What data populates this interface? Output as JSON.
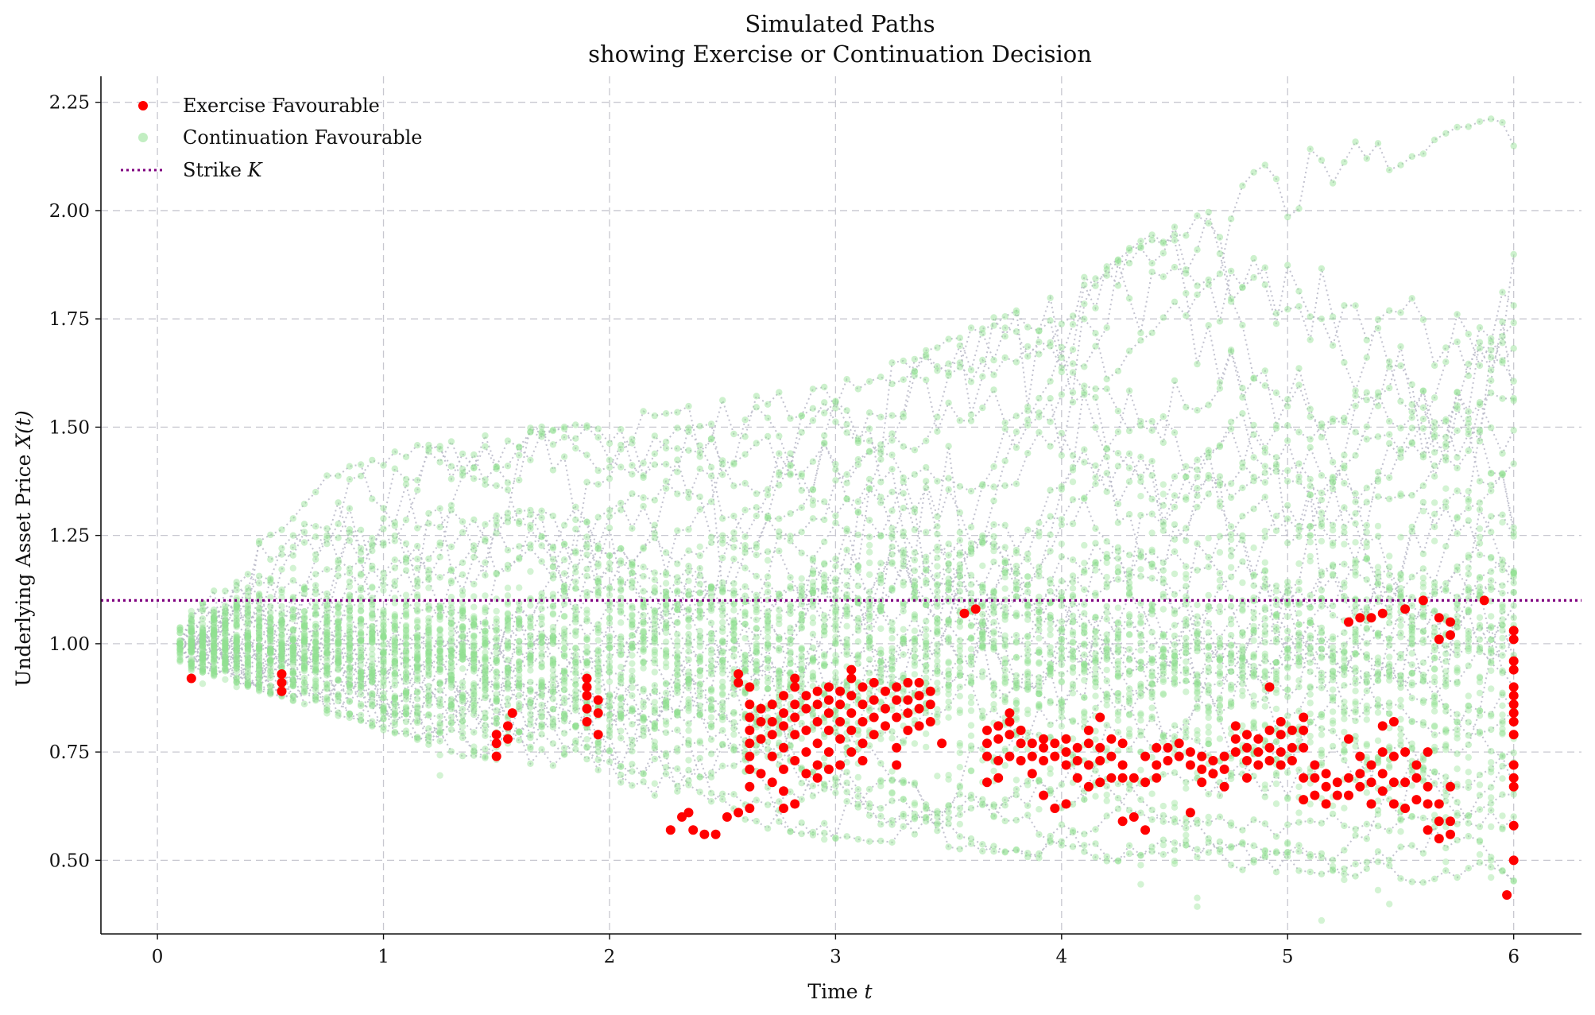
{
  "chart_data": {
    "type": "scatter",
    "title": "Simulated Paths",
    "subtitle": "showing Exercise or Continuation Decision",
    "xlabel": "Time",
    "xlabel_var": "t",
    "ylabel": "Underlying Asset Price",
    "ylabel_var": "X(t)",
    "xlim": [
      -0.25,
      6.3
    ],
    "ylim": [
      0.33,
      2.31
    ],
    "xticks": [
      0,
      1,
      2,
      3,
      4,
      5,
      6
    ],
    "xtick_labels": [
      "0",
      "1",
      "2",
      "3",
      "4",
      "5",
      "6"
    ],
    "yticks": [
      0.5,
      0.75,
      1.0,
      1.25,
      1.5,
      1.75,
      2.0,
      2.25
    ],
    "ytick_labels": [
      "0.50",
      "0.75",
      "1.00",
      "1.25",
      "1.50",
      "1.75",
      "2.00",
      "2.25"
    ],
    "grid": true,
    "legend_position": "top-left",
    "strike": 1.1,
    "strike_label": "Strike",
    "strike_var": "K",
    "colors": {
      "exercise": "#ff0000",
      "continuation": "#90e090",
      "strike": "#800080",
      "path_line": "#b8b8c8",
      "grid": "#c8c8d0"
    },
    "series": [
      {
        "name": "Exercise Favourable",
        "marker": "dot",
        "points": [
          [
            0.15,
            0.92
          ],
          [
            0.55,
            0.89
          ],
          [
            0.55,
            0.91
          ],
          [
            0.55,
            0.93
          ],
          [
            1.5,
            0.74
          ],
          [
            1.5,
            0.77
          ],
          [
            1.5,
            0.79
          ],
          [
            1.55,
            0.78
          ],
          [
            1.55,
            0.81
          ],
          [
            1.57,
            0.84
          ],
          [
            1.9,
            0.82
          ],
          [
            1.9,
            0.85
          ],
          [
            1.9,
            0.88
          ],
          [
            1.9,
            0.9
          ],
          [
            1.9,
            0.92
          ],
          [
            1.95,
            0.79
          ],
          [
            1.95,
            0.84
          ],
          [
            1.95,
            0.87
          ],
          [
            2.27,
            0.57
          ],
          [
            2.32,
            0.6
          ],
          [
            2.35,
            0.61
          ],
          [
            2.37,
            0.57
          ],
          [
            2.42,
            0.56
          ],
          [
            2.47,
            0.56
          ],
          [
            2.52,
            0.6
          ],
          [
            2.57,
            0.61
          ],
          [
            2.62,
            0.62
          ],
          [
            2.57,
            0.91
          ],
          [
            2.57,
            0.93
          ],
          [
            2.62,
            0.67
          ],
          [
            2.62,
            0.71
          ],
          [
            2.62,
            0.74
          ],
          [
            2.62,
            0.77
          ],
          [
            2.62,
            0.8
          ],
          [
            2.62,
            0.83
          ],
          [
            2.62,
            0.86
          ],
          [
            2.62,
            0.9
          ],
          [
            2.67,
            0.78
          ],
          [
            2.67,
            0.82
          ],
          [
            2.67,
            0.85
          ],
          [
            2.67,
            0.7
          ],
          [
            2.72,
            0.74
          ],
          [
            2.72,
            0.79
          ],
          [
            2.72,
            0.82
          ],
          [
            2.72,
            0.86
          ],
          [
            2.72,
            0.68
          ],
          [
            2.77,
            0.62
          ],
          [
            2.77,
            0.66
          ],
          [
            2.77,
            0.71
          ],
          [
            2.77,
            0.76
          ],
          [
            2.77,
            0.81
          ],
          [
            2.77,
            0.84
          ],
          [
            2.77,
            0.88
          ],
          [
            2.82,
            0.63
          ],
          [
            2.82,
            0.73
          ],
          [
            2.82,
            0.79
          ],
          [
            2.82,
            0.83
          ],
          [
            2.82,
            0.86
          ],
          [
            2.82,
            0.9
          ],
          [
            2.82,
            0.92
          ],
          [
            2.87,
            0.7
          ],
          [
            2.87,
            0.75
          ],
          [
            2.87,
            0.8
          ],
          [
            2.87,
            0.85
          ],
          [
            2.87,
            0.88
          ],
          [
            2.92,
            0.69
          ],
          [
            2.92,
            0.72
          ],
          [
            2.92,
            0.77
          ],
          [
            2.92,
            0.82
          ],
          [
            2.92,
            0.86
          ],
          [
            2.92,
            0.89
          ],
          [
            2.97,
            0.71
          ],
          [
            2.97,
            0.75
          ],
          [
            2.97,
            0.8
          ],
          [
            2.97,
            0.84
          ],
          [
            2.97,
            0.87
          ],
          [
            2.97,
            0.9
          ],
          [
            3.02,
            0.72
          ],
          [
            3.02,
            0.78
          ],
          [
            3.02,
            0.82
          ],
          [
            3.02,
            0.86
          ],
          [
            3.02,
            0.89
          ],
          [
            3.07,
            0.75
          ],
          [
            3.07,
            0.8
          ],
          [
            3.07,
            0.84
          ],
          [
            3.07,
            0.88
          ],
          [
            3.07,
            0.92
          ],
          [
            3.07,
            0.94
          ],
          [
            3.12,
            0.77
          ],
          [
            3.12,
            0.82
          ],
          [
            3.12,
            0.86
          ],
          [
            3.12,
            0.9
          ],
          [
            3.12,
            0.73
          ],
          [
            3.17,
            0.79
          ],
          [
            3.17,
            0.83
          ],
          [
            3.17,
            0.87
          ],
          [
            3.17,
            0.91
          ],
          [
            3.22,
            0.81
          ],
          [
            3.22,
            0.85
          ],
          [
            3.22,
            0.89
          ],
          [
            3.27,
            0.72
          ],
          [
            3.27,
            0.76
          ],
          [
            3.27,
            0.83
          ],
          [
            3.27,
            0.87
          ],
          [
            3.27,
            0.9
          ],
          [
            3.32,
            0.8
          ],
          [
            3.32,
            0.84
          ],
          [
            3.32,
            0.87
          ],
          [
            3.32,
            0.91
          ],
          [
            3.37,
            0.81
          ],
          [
            3.37,
            0.85
          ],
          [
            3.37,
            0.88
          ],
          [
            3.37,
            0.91
          ],
          [
            3.42,
            0.82
          ],
          [
            3.42,
            0.86
          ],
          [
            3.42,
            0.89
          ],
          [
            3.47,
            0.77
          ],
          [
            3.57,
            1.07
          ],
          [
            3.62,
            1.08
          ],
          [
            3.67,
            0.68
          ],
          [
            3.67,
            0.74
          ],
          [
            3.67,
            0.77
          ],
          [
            3.67,
            0.8
          ],
          [
            3.72,
            0.69
          ],
          [
            3.72,
            0.73
          ],
          [
            3.72,
            0.78
          ],
          [
            3.72,
            0.81
          ],
          [
            3.77,
            0.74
          ],
          [
            3.77,
            0.79
          ],
          [
            3.77,
            0.82
          ],
          [
            3.77,
            0.84
          ],
          [
            3.82,
            0.73
          ],
          [
            3.82,
            0.77
          ],
          [
            3.82,
            0.8
          ],
          [
            3.87,
            0.7
          ],
          [
            3.87,
            0.74
          ],
          [
            3.87,
            0.77
          ],
          [
            3.92,
            0.65
          ],
          [
            3.92,
            0.73
          ],
          [
            3.92,
            0.76
          ],
          [
            3.92,
            0.78
          ],
          [
            3.97,
            0.62
          ],
          [
            3.97,
            0.74
          ],
          [
            3.97,
            0.77
          ],
          [
            4.02,
            0.63
          ],
          [
            4.02,
            0.72
          ],
          [
            4.02,
            0.75
          ],
          [
            4.02,
            0.78
          ],
          [
            4.07,
            0.69
          ],
          [
            4.07,
            0.73
          ],
          [
            4.07,
            0.76
          ],
          [
            4.12,
            0.67
          ],
          [
            4.12,
            0.72
          ],
          [
            4.12,
            0.77
          ],
          [
            4.12,
            0.8
          ],
          [
            4.17,
            0.68
          ],
          [
            4.17,
            0.73
          ],
          [
            4.17,
            0.76
          ],
          [
            4.17,
            0.83
          ],
          [
            4.22,
            0.69
          ],
          [
            4.22,
            0.74
          ],
          [
            4.22,
            0.78
          ],
          [
            4.27,
            0.59
          ],
          [
            4.27,
            0.69
          ],
          [
            4.27,
            0.72
          ],
          [
            4.27,
            0.77
          ],
          [
            4.32,
            0.6
          ],
          [
            4.32,
            0.69
          ],
          [
            4.37,
            0.57
          ],
          [
            4.37,
            0.68
          ],
          [
            4.37,
            0.74
          ],
          [
            4.42,
            0.69
          ],
          [
            4.42,
            0.72
          ],
          [
            4.42,
            0.76
          ],
          [
            4.47,
            0.73
          ],
          [
            4.47,
            0.76
          ],
          [
            4.52,
            0.74
          ],
          [
            4.52,
            0.77
          ],
          [
            4.57,
            0.61
          ],
          [
            4.57,
            0.72
          ],
          [
            4.57,
            0.75
          ],
          [
            4.62,
            0.68
          ],
          [
            4.62,
            0.71
          ],
          [
            4.62,
            0.74
          ],
          [
            4.67,
            0.7
          ],
          [
            4.67,
            0.73
          ],
          [
            4.72,
            0.67
          ],
          [
            4.72,
            0.71
          ],
          [
            4.72,
            0.74
          ],
          [
            4.77,
            0.75
          ],
          [
            4.77,
            0.78
          ],
          [
            4.77,
            0.81
          ],
          [
            4.82,
            0.69
          ],
          [
            4.82,
            0.73
          ],
          [
            4.82,
            0.76
          ],
          [
            4.82,
            0.79
          ],
          [
            4.87,
            0.72
          ],
          [
            4.87,
            0.75
          ],
          [
            4.87,
            0.78
          ],
          [
            4.92,
            0.73
          ],
          [
            4.92,
            0.76
          ],
          [
            4.92,
            0.8
          ],
          [
            4.92,
            0.9
          ],
          [
            4.97,
            0.72
          ],
          [
            4.97,
            0.75
          ],
          [
            4.97,
            0.79
          ],
          [
            4.97,
            0.82
          ],
          [
            5.02,
            0.73
          ],
          [
            5.02,
            0.76
          ],
          [
            5.02,
            0.8
          ],
          [
            5.07,
            0.64
          ],
          [
            5.07,
            0.69
          ],
          [
            5.07,
            0.76
          ],
          [
            5.07,
            0.8
          ],
          [
            5.07,
            0.83
          ],
          [
            5.12,
            0.65
          ],
          [
            5.12,
            0.69
          ],
          [
            5.12,
            0.72
          ],
          [
            5.17,
            0.63
          ],
          [
            5.17,
            0.67
          ],
          [
            5.17,
            0.7
          ],
          [
            5.22,
            0.65
          ],
          [
            5.22,
            0.68
          ],
          [
            5.27,
            0.65
          ],
          [
            5.27,
            0.69
          ],
          [
            5.27,
            0.78
          ],
          [
            5.27,
            1.05
          ],
          [
            5.32,
            0.67
          ],
          [
            5.32,
            0.7
          ],
          [
            5.32,
            0.74
          ],
          [
            5.32,
            1.06
          ],
          [
            5.37,
            0.63
          ],
          [
            5.37,
            0.68
          ],
          [
            5.37,
            0.72
          ],
          [
            5.37,
            1.06
          ],
          [
            5.42,
            0.66
          ],
          [
            5.42,
            0.7
          ],
          [
            5.42,
            0.75
          ],
          [
            5.42,
            0.81
          ],
          [
            5.42,
            1.07
          ],
          [
            5.47,
            0.63
          ],
          [
            5.47,
            0.68
          ],
          [
            5.47,
            0.74
          ],
          [
            5.47,
            0.82
          ],
          [
            5.52,
            0.62
          ],
          [
            5.52,
            0.68
          ],
          [
            5.52,
            0.75
          ],
          [
            5.52,
            1.08
          ],
          [
            5.57,
            0.64
          ],
          [
            5.57,
            0.69
          ],
          [
            5.57,
            0.72
          ],
          [
            5.6,
            1.1
          ],
          [
            5.62,
            0.57
          ],
          [
            5.62,
            0.63
          ],
          [
            5.62,
            0.67
          ],
          [
            5.62,
            0.75
          ],
          [
            5.67,
            0.55
          ],
          [
            5.67,
            0.59
          ],
          [
            5.67,
            0.63
          ],
          [
            5.67,
            1.01
          ],
          [
            5.67,
            1.06
          ],
          [
            5.72,
            0.56
          ],
          [
            5.72,
            0.59
          ],
          [
            5.72,
            0.67
          ],
          [
            5.72,
            1.02
          ],
          [
            5.72,
            1.05
          ],
          [
            5.87,
            1.1
          ],
          [
            5.97,
            0.42
          ],
          [
            6.0,
            0.5
          ],
          [
            6.0,
            0.58
          ],
          [
            6.0,
            0.67
          ],
          [
            6.0,
            0.69
          ],
          [
            6.0,
            0.72
          ],
          [
            6.0,
            0.79
          ],
          [
            6.0,
            0.82
          ],
          [
            6.0,
            0.84
          ],
          [
            6.0,
            0.86
          ],
          [
            6.0,
            0.88
          ],
          [
            6.0,
            0.9
          ],
          [
            6.0,
            0.94
          ],
          [
            6.0,
            0.96
          ],
          [
            6.0,
            1.01
          ],
          [
            6.0,
            1.03
          ]
        ]
      },
      {
        "name": "Continuation Favourable",
        "marker": "dot",
        "generated_band": {
          "min_envelope": [
            [
              0.1,
              0.95
            ],
            [
              1,
              0.8
            ],
            [
              2,
              0.62
            ],
            [
              3,
              0.55
            ],
            [
              4,
              0.5
            ],
            [
              5,
              0.47
            ],
            [
              6,
              0.43
            ]
          ],
          "max_envelope": [
            [
              0.1,
              1.05
            ],
            [
              0.8,
              1.43
            ],
            [
              2,
              1.53
            ],
            [
              3,
              1.6
            ],
            [
              4,
              1.82
            ],
            [
              5,
              2.14
            ],
            [
              6,
              2.22
            ]
          ],
          "core_center": [
            [
              0.1,
              1.0
            ],
            [
              1,
              1.0
            ],
            [
              2,
              0.97
            ],
            [
              3,
              0.95
            ],
            [
              4,
              0.93
            ],
            [
              5,
              0.9
            ],
            [
              6,
              0.88
            ]
          ]
        }
      },
      {
        "name": "Strike",
        "value": 1.1
      }
    ]
  }
}
